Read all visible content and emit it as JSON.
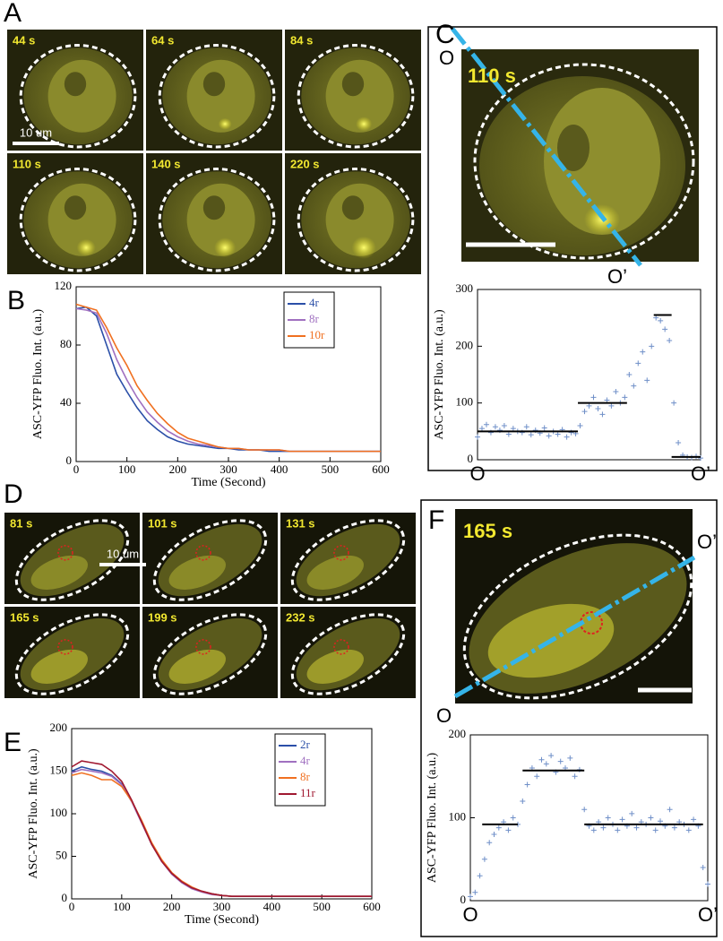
{
  "panels": {
    "A": {
      "label": "A",
      "frames": [
        "44 s",
        "64 s",
        "84 s",
        "110 s",
        "140 s",
        "220 s"
      ],
      "scalebar": "10 um"
    },
    "B": {
      "label": "B"
    },
    "C": {
      "label": "C",
      "time": "110 s",
      "start": "O",
      "end": "O’"
    },
    "D": {
      "label": "D",
      "frames": [
        "81 s",
        "101 s",
        "131 s",
        "165 s",
        "199 s",
        "232 s"
      ],
      "scalebar": "10 um"
    },
    "E": {
      "label": "E"
    },
    "F": {
      "label": "F",
      "time": "165 s",
      "start": "O",
      "end": "O’"
    }
  },
  "chart_data": [
    {
      "type": "line",
      "xlabel": "Time (Second)",
      "ylabel": "ASC-YFP Fluo. Int. (a.u.)",
      "x": [
        0,
        20,
        40,
        60,
        80,
        100,
        120,
        140,
        160,
        180,
        200,
        220,
        240,
        260,
        280,
        300,
        320,
        340,
        360,
        380,
        400,
        420,
        440,
        460,
        480,
        500,
        520,
        540,
        560,
        580,
        600
      ],
      "series": [
        {
          "name": "4r",
          "color": "#2b4fa8",
          "values": [
            105,
            106,
            100,
            80,
            60,
            48,
            37,
            28,
            22,
            17,
            14,
            12,
            11,
            10,
            9,
            9,
            8,
            8,
            8,
            7,
            7,
            7,
            7,
            7,
            7,
            7,
            7,
            7,
            7,
            7,
            7
          ]
        },
        {
          "name": "8r",
          "color": "#a070c0",
          "values": [
            105,
            104,
            102,
            88,
            70,
            56,
            44,
            34,
            27,
            21,
            17,
            14,
            12,
            11,
            10,
            9,
            9,
            8,
            8,
            8,
            8,
            7,
            7,
            7,
            7,
            7,
            7,
            7,
            7,
            7,
            7
          ]
        },
        {
          "name": "10r",
          "color": "#f07020",
          "values": [
            108,
            106,
            104,
            92,
            78,
            66,
            52,
            42,
            33,
            26,
            20,
            16,
            14,
            12,
            10,
            9,
            9,
            8,
            8,
            8,
            8,
            7,
            7,
            7,
            7,
            7,
            7,
            7,
            7,
            7,
            7
          ]
        }
      ],
      "xlim": [
        0,
        600
      ],
      "xticks": [
        0,
        100,
        200,
        300,
        400,
        500,
        600
      ],
      "ylim": [
        0,
        120
      ],
      "yticks": [
        0,
        40,
        80,
        120
      ],
      "legend": "upper right"
    },
    {
      "type": "scatter",
      "ylabel": "ASC-YFP Fluo. Int. (a.u.)",
      "color": "#6f8fc8",
      "x": [
        0,
        2,
        4,
        6,
        8,
        10,
        12,
        14,
        16,
        18,
        20,
        22,
        24,
        26,
        28,
        30,
        32,
        34,
        36,
        38,
        40,
        42,
        44,
        46,
        48,
        50,
        52,
        54,
        56,
        58,
        60,
        62,
        64,
        66,
        68,
        70,
        72,
        74,
        76,
        78,
        80,
        82,
        84,
        86,
        88,
        90,
        92,
        94,
        96,
        98,
        100
      ],
      "values": [
        40,
        55,
        62,
        48,
        58,
        52,
        60,
        45,
        55,
        50,
        48,
        58,
        44,
        52,
        47,
        56,
        42,
        50,
        45,
        53,
        40,
        48,
        46,
        60,
        85,
        95,
        110,
        90,
        80,
        105,
        95,
        120,
        100,
        110,
        150,
        130,
        170,
        190,
        140,
        200,
        250,
        245,
        230,
        210,
        100,
        30,
        8,
        5,
        4,
        6,
        3
      ],
      "levels": [
        {
          "value": 50,
          "xrange": [
            0,
            45
          ]
        },
        {
          "value": 100,
          "xrange": [
            45,
            67
          ]
        },
        {
          "value": 255,
          "xrange": [
            79,
            87
          ]
        },
        {
          "value": 5,
          "xrange": [
            87,
            100
          ]
        }
      ],
      "xlim": [
        0,
        100
      ],
      "xticks": [
        {
          "value": 0,
          "label": "O"
        },
        {
          "value": 100,
          "label": "O’"
        }
      ],
      "ylim": [
        0,
        300
      ],
      "yticks": [
        0,
        100,
        200,
        300
      ]
    },
    {
      "type": "line",
      "xlabel": "Time (Second)",
      "ylabel": "ASC-YFP Fluo. Int. (a.u.)",
      "x": [
        0,
        20,
        40,
        60,
        80,
        100,
        120,
        140,
        160,
        180,
        200,
        220,
        240,
        260,
        280,
        300,
        320,
        340,
        360,
        380,
        400,
        420,
        440,
        460,
        480,
        500,
        520,
        540,
        560,
        580,
        600
      ],
      "series": [
        {
          "name": "2r",
          "color": "#2b4fa8",
          "values": [
            150,
            155,
            152,
            150,
            145,
            135,
            115,
            90,
            65,
            45,
            30,
            20,
            13,
            9,
            6,
            4,
            3,
            3,
            3,
            3,
            3,
            3,
            3,
            3,
            3,
            3,
            3,
            3,
            3,
            3,
            3
          ]
        },
        {
          "name": "4r",
          "color": "#a070c0",
          "values": [
            148,
            152,
            150,
            148,
            144,
            134,
            114,
            89,
            64,
            44,
            29,
            19,
            12,
            8,
            5,
            4,
            3,
            3,
            3,
            3,
            3,
            3,
            3,
            3,
            3,
            3,
            3,
            3,
            3,
            3,
            3
          ]
        },
        {
          "name": "8r",
          "color": "#f07020",
          "values": [
            145,
            148,
            145,
            140,
            140,
            132,
            115,
            92,
            66,
            46,
            31,
            21,
            14,
            9,
            6,
            4,
            3,
            3,
            3,
            3,
            3,
            3,
            3,
            3,
            3,
            3,
            3,
            3,
            3,
            3,
            3
          ]
        },
        {
          "name": "11r",
          "color": "#a01830",
          "values": [
            155,
            162,
            160,
            158,
            150,
            138,
            116,
            90,
            64,
            44,
            30,
            20,
            13,
            9,
            6,
            4,
            3,
            3,
            3,
            3,
            3,
            3,
            3,
            3,
            3,
            3,
            3,
            3,
            3,
            3,
            3
          ]
        }
      ],
      "xlim": [
        0,
        600
      ],
      "xticks": [
        0,
        100,
        200,
        300,
        400,
        500,
        600
      ],
      "ylim": [
        0,
        200
      ],
      "yticks": [
        0,
        50,
        100,
        150,
        200
      ],
      "legend": "upper right"
    },
    {
      "type": "scatter",
      "ylabel": "ASC-YFP Fluo. Int. (a.u.)",
      "color": "#6f8fc8",
      "x": [
        0,
        2,
        4,
        6,
        8,
        10,
        12,
        14,
        16,
        18,
        20,
        22,
        24,
        26,
        28,
        30,
        32,
        34,
        36,
        38,
        40,
        42,
        44,
        46,
        48,
        50,
        52,
        54,
        56,
        58,
        60,
        62,
        64,
        66,
        68,
        70,
        72,
        74,
        76,
        78,
        80,
        82,
        84,
        86,
        88,
        90,
        92,
        94,
        96,
        98,
        100
      ],
      "values": [
        5,
        10,
        30,
        50,
        70,
        80,
        88,
        95,
        85,
        100,
        92,
        120,
        140,
        160,
        150,
        170,
        165,
        175,
        155,
        168,
        160,
        172,
        150,
        158,
        110,
        90,
        85,
        95,
        88,
        100,
        92,
        85,
        98,
        90,
        105,
        88,
        95,
        92,
        100,
        85,
        96,
        90,
        110,
        88,
        95,
        92,
        85,
        98,
        90,
        40,
        20
      ],
      "levels": [
        {
          "value": 92,
          "xrange": [
            5,
            20
          ]
        },
        {
          "value": 157,
          "xrange": [
            22,
            48
          ]
        },
        {
          "value": 92,
          "xrange": [
            48,
            98
          ]
        }
      ],
      "xlim": [
        0,
        100
      ],
      "xticks": [
        {
          "value": 0,
          "label": "O"
        },
        {
          "value": 100,
          "label": "O’"
        }
      ],
      "ylim": [
        0,
        200
      ],
      "yticks": [
        0,
        100,
        200
      ]
    }
  ]
}
